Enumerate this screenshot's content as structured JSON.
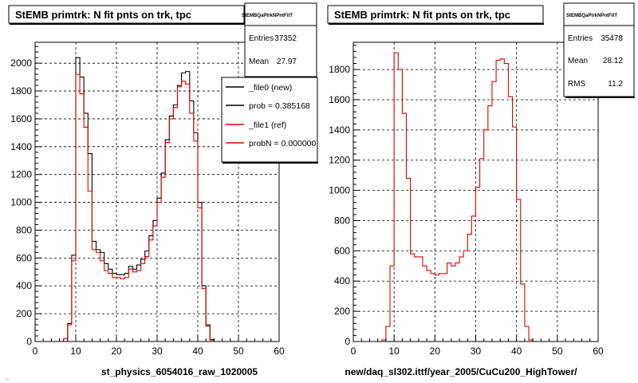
{
  "chart_data": [
    {
      "type": "histogram",
      "title": "StEMB primtrk: N fit pnts on trk, tpc",
      "xlabel": "st_physics_6054016_raw_1020005",
      "ylabel": "",
      "xlim": [
        0,
        60
      ],
      "ylim": [
        0,
        2150
      ],
      "xticks": [
        0,
        10,
        20,
        30,
        40,
        50,
        60
      ],
      "yticks": [
        0,
        200,
        400,
        600,
        800,
        1000,
        1200,
        1400,
        1600,
        1800,
        2000
      ],
      "grid": true,
      "bin_width": 1,
      "series": [
        {
          "name": "_file0 (new)",
          "color": "#000000",
          "x": [
            0,
            1,
            2,
            3,
            4,
            5,
            6,
            7,
            8,
            9,
            10,
            11,
            12,
            13,
            14,
            15,
            16,
            17,
            18,
            19,
            20,
            21,
            22,
            23,
            24,
            25,
            26,
            27,
            28,
            29,
            30,
            31,
            32,
            33,
            34,
            35,
            36,
            37,
            38,
            39,
            40,
            41,
            42,
            43,
            44,
            45,
            46,
            47,
            48,
            49,
            50,
            51,
            52,
            53,
            54,
            55,
            56,
            57,
            58,
            59
          ],
          "values": [
            0,
            0,
            0,
            0,
            0,
            0,
            0,
            20,
            130,
            620,
            2040,
            1900,
            1640,
            1350,
            720,
            660,
            640,
            560,
            520,
            490,
            480,
            480,
            490,
            540,
            520,
            550,
            590,
            650,
            760,
            870,
            1030,
            1210,
            1450,
            1620,
            1700,
            1840,
            1930,
            1940,
            1730,
            1500,
            1000,
            400,
            120,
            15,
            0,
            0,
            0,
            0,
            0,
            0,
            0,
            0,
            0,
            0,
            0,
            0,
            0,
            0,
            0,
            0
          ]
        },
        {
          "name": "_file1 (ref)",
          "color": "#e00000",
          "x": [
            0,
            1,
            2,
            3,
            4,
            5,
            6,
            7,
            8,
            9,
            10,
            11,
            12,
            13,
            14,
            15,
            16,
            17,
            18,
            19,
            20,
            21,
            22,
            23,
            24,
            25,
            26,
            27,
            28,
            29,
            30,
            31,
            32,
            33,
            34,
            35,
            36,
            37,
            38,
            39,
            40,
            41,
            42,
            43,
            44,
            45,
            46,
            47,
            48,
            49,
            50,
            51,
            52,
            53,
            54,
            55,
            56,
            57,
            58,
            59
          ],
          "values": [
            0,
            0,
            0,
            0,
            0,
            0,
            0,
            20,
            120,
            580,
            1920,
            1780,
            1540,
            1080,
            660,
            640,
            580,
            510,
            490,
            460,
            460,
            450,
            460,
            520,
            500,
            510,
            560,
            610,
            730,
            830,
            1000,
            1180,
            1430,
            1600,
            1680,
            1830,
            1870,
            1850,
            1640,
            1440,
            960,
            380,
            110,
            10,
            0,
            0,
            0,
            0,
            0,
            0,
            0,
            0,
            0,
            0,
            0,
            0,
            0,
            0,
            0,
            0
          ]
        }
      ],
      "stats": {
        "header": "StEMBQaPtrkNPntFitT",
        "entries_label": "Entries",
        "entries": "37352",
        "mean_label": "Mean",
        "mean": "27.97"
      },
      "legend": {
        "position": "top-right",
        "entries": [
          "_file0 (new)",
          "prob = 0.385168",
          "_file1 (ref)",
          "probN = 0.000000"
        ]
      }
    },
    {
      "type": "histogram",
      "title": "StEMB primtrk: N fit pnts on trk, tpc",
      "xlabel": "new/daq_sl302.ittf/year_2005/CuCu200_HighTower/",
      "ylabel": "",
      "xlim": [
        0,
        60
      ],
      "ylim": [
        0,
        1980
      ],
      "xticks": [
        0,
        10,
        20,
        30,
        40,
        50,
        60
      ],
      "yticks": [
        0,
        200,
        400,
        600,
        800,
        1000,
        1200,
        1400,
        1600,
        1800
      ],
      "grid": true,
      "bin_width": 1,
      "series": [
        {
          "name": "",
          "color": "#e00000",
          "x": [
            0,
            1,
            2,
            3,
            4,
            5,
            6,
            7,
            8,
            9,
            10,
            11,
            12,
            13,
            14,
            15,
            16,
            17,
            18,
            19,
            20,
            21,
            22,
            23,
            24,
            25,
            26,
            27,
            28,
            29,
            30,
            31,
            32,
            33,
            34,
            35,
            36,
            37,
            38,
            39,
            40,
            41,
            42,
            43,
            44,
            45,
            46,
            47,
            48,
            49,
            50,
            51,
            52,
            53,
            54,
            55,
            56,
            57,
            58,
            59
          ],
          "values": [
            0,
            0,
            0,
            0,
            0,
            0,
            0,
            10,
            100,
            500,
            1910,
            1800,
            1510,
            1080,
            580,
            560,
            560,
            500,
            470,
            450,
            440,
            450,
            450,
            520,
            500,
            520,
            560,
            600,
            710,
            830,
            1020,
            1210,
            1400,
            1560,
            1720,
            1860,
            1870,
            1840,
            1620,
            1420,
            940,
            380,
            100,
            10,
            0,
            0,
            0,
            0,
            0,
            0,
            0,
            0,
            0,
            0,
            0,
            0,
            0,
            0,
            0,
            0
          ]
        }
      ],
      "stats": {
        "header": "StEMBQaPtrkNPntFitT",
        "entries_label": "Entries",
        "entries": "35478",
        "mean_label": "Mean",
        "mean": "28.12",
        "rms_label": "RMS",
        "rms": "11.2"
      }
    }
  ],
  "footer": {
    "text": "..."
  }
}
